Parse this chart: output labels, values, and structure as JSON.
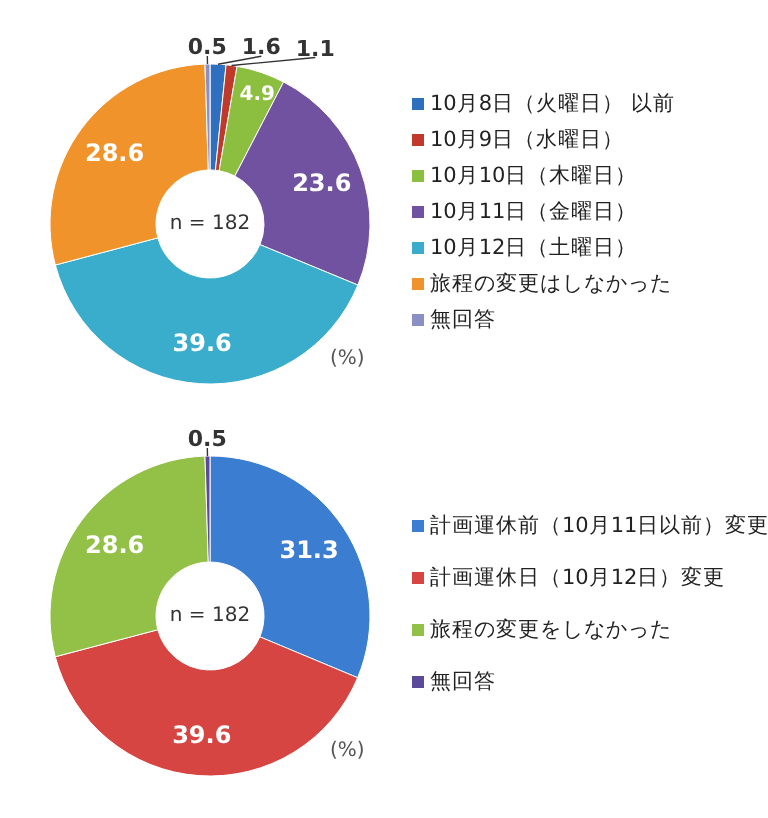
{
  "chart_data": [
    {
      "type": "donut",
      "categories": [
        "10月8日（火曜日） 以前",
        "10月9日（水曜日）",
        "10月10日（木曜日）",
        "10月11日（金曜日）",
        "10月12日（土曜日）",
        "旅程の変更はしなかった",
        "無回答"
      ],
      "values": [
        1.6,
        1.1,
        4.9,
        23.6,
        39.6,
        28.6,
        0.5
      ],
      "colors": [
        "#2e6fc0",
        "#c0392b",
        "#8cbf3f",
        "#7152a0",
        "#3aaccc",
        "#f0932b",
        "#8a8fc4"
      ],
      "data_labels": true,
      "legend": "right",
      "annotations": [
        "n = 182",
        "(%)"
      ]
    },
    {
      "type": "donut",
      "categories": [
        "計画運休前（10月11日以前）変更",
        "計画運休日（10月12日）変更",
        "旅程の変更をしなかった",
        "無回答"
      ],
      "values": [
        31.3,
        39.6,
        28.6,
        0.5
      ],
      "colors": [
        "#3b7dd1",
        "#d64541",
        "#93c047",
        "#5b4a9a"
      ],
      "data_labels": true,
      "legend": "right",
      "annotations": [
        "n = 182",
        "(%)"
      ]
    }
  ]
}
